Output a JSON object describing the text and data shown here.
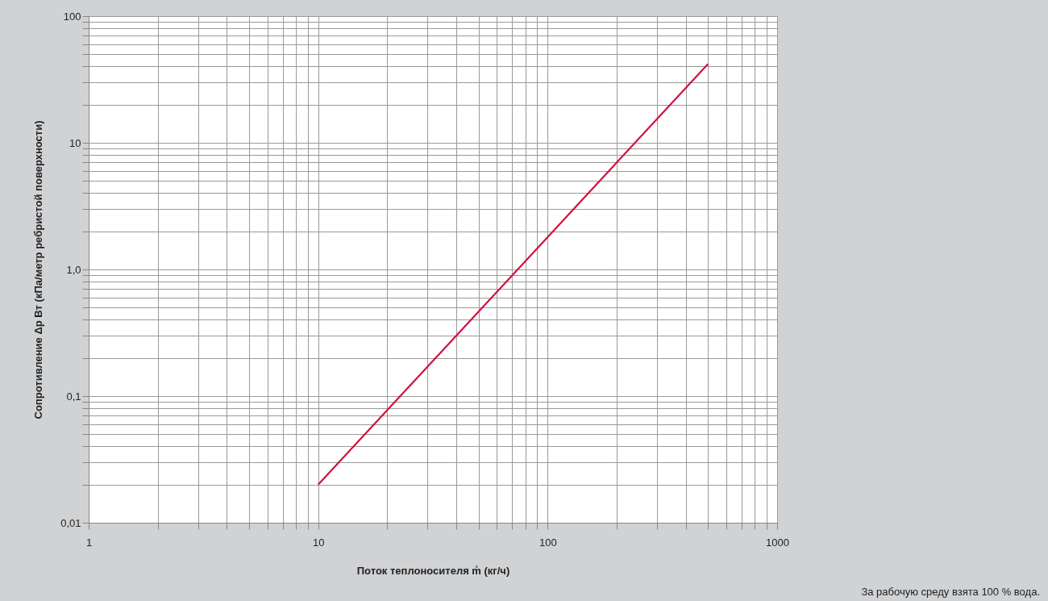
{
  "chart_data": {
    "type": "line",
    "xlabel": "Поток теплоносителя m̊ (кг/ч)",
    "ylabel": "Сопротивление Δp Вт (кПа/метр ребристой поверхности)",
    "annotations": [
      "За рабочую среду взята 100 % вода."
    ],
    "log": "xy",
    "grid": true,
    "series": [
      {
        "color": "#d2123d",
        "x": [
          10,
          100,
          500
        ],
        "values": [
          0.02,
          1.8,
          42
        ]
      }
    ],
    "xlim": [
      1,
      1000
    ],
    "ylim": [
      0.01,
      100
    ],
    "xticks": [
      1,
      {
        "value": 2,
        "label": null
      },
      {
        "value": 3,
        "label": null
      },
      {
        "value": 4,
        "label": null
      },
      {
        "value": 5,
        "label": null
      },
      {
        "value": 6,
        "label": null
      },
      {
        "value": 7,
        "label": null
      },
      {
        "value": 8,
        "label": null
      },
      {
        "value": 9,
        "label": null
      },
      10,
      {
        "value": 20,
        "label": null
      },
      {
        "value": 30,
        "label": null
      },
      {
        "value": 40,
        "label": null
      },
      {
        "value": 50,
        "label": null
      },
      {
        "value": 60,
        "label": null
      },
      {
        "value": 70,
        "label": null
      },
      {
        "value": 80,
        "label": null
      },
      {
        "value": 90,
        "label": null
      },
      100,
      {
        "value": 200,
        "label": null
      },
      {
        "value": 300,
        "label": null
      },
      {
        "value": 400,
        "label": null
      },
      {
        "value": 500,
        "label": null
      },
      {
        "value": 600,
        "label": null
      },
      {
        "value": 700,
        "label": null
      },
      {
        "value": 800,
        "label": null
      },
      {
        "value": 900,
        "label": null
      },
      1000
    ],
    "yticks": [
      {
        "value": 0.01,
        "label": "0,01"
      },
      {
        "value": 0.02,
        "label": null
      },
      {
        "value": 0.03,
        "label": null
      },
      {
        "value": 0.04,
        "label": null
      },
      {
        "value": 0.05,
        "label": null
      },
      {
        "value": 0.06,
        "label": null
      },
      {
        "value": 0.07,
        "label": null
      },
      {
        "value": 0.08,
        "label": null
      },
      {
        "value": 0.09,
        "label": null
      },
      {
        "value": 0.1,
        "label": "0,1"
      },
      {
        "value": 0.2,
        "label": null
      },
      {
        "value": 0.3,
        "label": null
      },
      {
        "value": 0.4,
        "label": null
      },
      {
        "value": 0.5,
        "label": null
      },
      {
        "value": 0.6,
        "label": null
      },
      {
        "value": 0.7,
        "label": null
      },
      {
        "value": 0.8,
        "label": null
      },
      {
        "value": 0.9,
        "label": null
      },
      {
        "value": 1,
        "label": "1,0"
      },
      {
        "value": 2,
        "label": null
      },
      {
        "value": 3,
        "label": null
      },
      {
        "value": 4,
        "label": null
      },
      {
        "value": 5,
        "label": null
      },
      {
        "value": 6,
        "label": null
      },
      {
        "value": 7,
        "label": null
      },
      {
        "value": 8,
        "label": null
      },
      {
        "value": 9,
        "label": null
      },
      10,
      {
        "value": 20,
        "label": null
      },
      {
        "value": 30,
        "label": null
      },
      {
        "value": 40,
        "label": null
      },
      {
        "value": 50,
        "label": null
      },
      {
        "value": 60,
        "label": null
      },
      {
        "value": 70,
        "label": null
      },
      {
        "value": 80,
        "label": null
      },
      {
        "value": 90,
        "label": null
      },
      100
    ]
  }
}
